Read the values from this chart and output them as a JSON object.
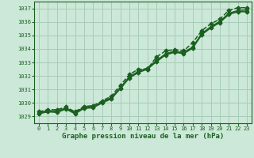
{
  "xlabel": "Graphe pression niveau de la mer (hPa)",
  "bg_color": "#cce8d8",
  "grid_color": "#a8ccb8",
  "line_color": "#1a6020",
  "ylim": [
    1028.5,
    1037.5
  ],
  "xlim": [
    -0.5,
    23.5
  ],
  "yticks": [
    1029,
    1030,
    1031,
    1032,
    1033,
    1034,
    1035,
    1036,
    1037
  ],
  "xticks": [
    0,
    1,
    2,
    3,
    4,
    5,
    6,
    7,
    8,
    9,
    10,
    11,
    12,
    13,
    14,
    15,
    16,
    17,
    18,
    19,
    20,
    21,
    22,
    23
  ],
  "series": [
    [
      1029.2,
      1029.35,
      1029.3,
      1029.55,
      1029.2,
      1029.6,
      1029.65,
      1030.0,
      1030.3,
      1031.05,
      1031.85,
      1032.25,
      1032.5,
      1033.05,
      1033.55,
      1033.75,
      1033.65,
      1034.05,
      1035.05,
      1035.55,
      1035.95,
      1036.55,
      1036.75,
      1036.75
    ],
    [
      1029.25,
      1029.4,
      1029.35,
      1029.6,
      1029.25,
      1029.65,
      1029.7,
      1030.05,
      1030.35,
      1031.1,
      1031.9,
      1032.3,
      1032.55,
      1033.1,
      1033.6,
      1033.8,
      1033.7,
      1034.1,
      1035.1,
      1035.6,
      1036.0,
      1036.6,
      1036.8,
      1036.8
    ],
    [
      1029.3,
      1029.45,
      1029.4,
      1029.65,
      1029.3,
      1029.7,
      1029.75,
      1030.1,
      1030.4,
      1031.15,
      1031.95,
      1032.35,
      1032.6,
      1033.15,
      1033.65,
      1033.85,
      1033.75,
      1034.15,
      1035.15,
      1035.65,
      1036.05,
      1036.65,
      1036.85,
      1036.9
    ],
    [
      1029.35,
      1029.5,
      1029.5,
      1029.7,
      1029.35,
      1029.75,
      1029.8,
      1030.15,
      1030.5,
      1031.3,
      1032.1,
      1032.5,
      1032.5,
      1033.4,
      1033.85,
      1033.95,
      1033.85,
      1034.45,
      1035.35,
      1035.85,
      1036.2,
      1036.85,
      1037.05,
      1037.05
    ]
  ]
}
